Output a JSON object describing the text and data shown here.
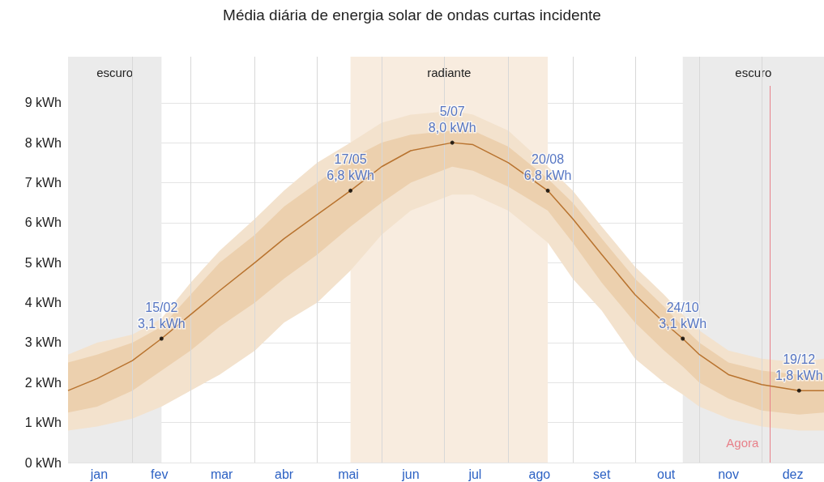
{
  "chart_data": {
    "type": "line",
    "title": "Média diária de energia solar de ondas curtas incidente",
    "x": [
      "--01-01",
      "--01-15",
      "--02-01",
      "--02-15",
      "--03-01",
      "--03-15",
      "--04-01",
      "--04-15",
      "--05-01",
      "--05-17",
      "--06-01",
      "--06-15",
      "--07-05",
      "--07-15",
      "--08-01",
      "--08-20",
      "--09-01",
      "--09-15",
      "--10-01",
      "--10-15",
      "--10-24",
      "--11-01",
      "--11-15",
      "--12-01",
      "--12-19",
      "--12-31"
    ],
    "series": [
      {
        "type": "line",
        "color": "#b8732f",
        "values": [
          1.8,
          2.1,
          2.55,
          3.1,
          3.7,
          4.3,
          5.0,
          5.6,
          6.2,
          6.8,
          7.4,
          7.8,
          8.0,
          7.95,
          7.5,
          6.8,
          6.1,
          5.2,
          4.2,
          3.5,
          3.1,
          2.7,
          2.2,
          1.95,
          1.8,
          1.8
        ],
        "lower": [
          1.25,
          1.4,
          1.8,
          2.3,
          2.8,
          3.4,
          4.0,
          4.6,
          5.2,
          5.9,
          6.5,
          7.0,
          7.4,
          7.3,
          6.9,
          6.3,
          5.5,
          4.5,
          3.5,
          2.8,
          2.4,
          2.0,
          1.6,
          1.3,
          1.2,
          1.25
        ],
        "upper": [
          2.5,
          2.7,
          3.0,
          3.4,
          4.2,
          5.0,
          5.7,
          6.4,
          7.0,
          7.6,
          8.0,
          8.2,
          8.3,
          8.3,
          7.9,
          7.1,
          6.5,
          5.6,
          4.6,
          3.9,
          3.4,
          3.0,
          2.5,
          2.3,
          2.2,
          2.2
        ]
      },
      {
        "type": "area",
        "color": "#f3e2cd",
        "values": [
          null,
          null,
          null,
          null,
          null,
          null,
          null,
          null,
          null,
          null,
          null,
          null,
          null,
          null,
          null,
          null,
          null,
          null,
          null,
          null,
          null,
          null,
          null,
          null,
          null,
          null
        ],
        "lower": [
          0.8,
          0.9,
          1.1,
          1.4,
          1.8,
          2.2,
          2.8,
          3.5,
          4.0,
          4.8,
          5.7,
          6.3,
          6.7,
          6.7,
          6.3,
          5.5,
          4.6,
          3.8,
          2.6,
          2.0,
          1.7,
          1.4,
          1.1,
          0.9,
          0.8,
          0.8
        ],
        "upper": [
          2.7,
          3.0,
          3.2,
          3.6,
          4.5,
          5.3,
          6.1,
          6.8,
          7.5,
          8.0,
          8.5,
          8.7,
          8.8,
          8.7,
          8.3,
          7.4,
          6.8,
          5.9,
          4.9,
          4.2,
          3.7,
          3.3,
          2.8,
          2.6,
          2.5,
          2.6
        ]
      }
    ],
    "xlim": [
      "--01-01",
      "--12-31"
    ],
    "xticks": [
      {
        "value": "--01-16",
        "label": "jan"
      },
      {
        "value": "--02-01",
        "label": null
      },
      {
        "value": "--02-14",
        "label": "fev"
      },
      {
        "value": "--03-01",
        "label": null
      },
      {
        "value": "--03-16",
        "label": "mar"
      },
      {
        "value": "--04-01",
        "label": null
      },
      {
        "value": "--04-15",
        "label": "abr"
      },
      {
        "value": "--05-01",
        "label": null
      },
      {
        "value": "--05-16",
        "label": "mai"
      },
      {
        "value": "--06-01",
        "label": null
      },
      {
        "value": "--06-15",
        "label": "jun"
      },
      {
        "value": "--07-01",
        "label": null
      },
      {
        "value": "--07-16",
        "label": "jul"
      },
      {
        "value": "--08-01",
        "label": null
      },
      {
        "value": "--08-16",
        "label": "ago"
      },
      {
        "value": "--09-01",
        "label": null
      },
      {
        "value": "--09-15",
        "label": "set"
      },
      {
        "value": "--10-01",
        "label": null
      },
      {
        "value": "--10-16",
        "label": "out"
      },
      {
        "value": "--11-01",
        "label": null
      },
      {
        "value": "--11-15",
        "label": "nov"
      },
      {
        "value": "--12-01",
        "label": null
      },
      {
        "value": "--12-16",
        "label": "dez"
      }
    ],
    "ylim": [
      0,
      10.15
    ],
    "yticks": [
      {
        "value": 0,
        "label": "0 kWh"
      },
      {
        "value": 1,
        "label": "1 kWh"
      },
      {
        "value": 2,
        "label": "2 kWh"
      },
      {
        "value": 3,
        "label": "3 kWh"
      },
      {
        "value": 4,
        "label": "4 kWh"
      },
      {
        "value": 5,
        "label": "5 kWh"
      },
      {
        "value": 6,
        "label": "6 kWh"
      },
      {
        "value": 7,
        "label": "7 kWh"
      },
      {
        "value": 8,
        "label": "8 kWh"
      },
      {
        "value": 9,
        "label": "9 kWh"
      }
    ],
    "grid": true,
    "bands": [
      {
        "axis": "x",
        "from": "--01-01",
        "to": "--02-15",
        "label": "escuro",
        "color": "#ebebeb"
      },
      {
        "axis": "x",
        "from": "--05-17",
        "to": "--08-20",
        "label": "radiante",
        "color": "#f8ecdf"
      },
      {
        "axis": "x",
        "from": "--10-24",
        "to": "--12-31",
        "label": "escuro",
        "color": "#ebebeb"
      }
    ],
    "ref_lines": [
      {
        "axis": "x",
        "value": "--12-05",
        "label": "Agora",
        "color": "#e8818a"
      }
    ],
    "annotations": [
      {
        "text": "15/02\n3,1 kWh",
        "x": "--02-15",
        "y": 3.1
      },
      {
        "text": "17/05\n6,8 kWh",
        "x": "--05-17",
        "y": 6.8
      },
      {
        "text": "5/07\n8,0 kWh",
        "x": "--07-05",
        "y": 8.0
      },
      {
        "text": "20/08\n6,8 kWh",
        "x": "--08-20",
        "y": 6.8
      },
      {
        "text": "24/10\n3,1 kWh",
        "x": "--10-24",
        "y": 3.1
      },
      {
        "text": "19/12\n1,8 kWh",
        "x": "--12-19",
        "y": 1.8
      }
    ]
  }
}
